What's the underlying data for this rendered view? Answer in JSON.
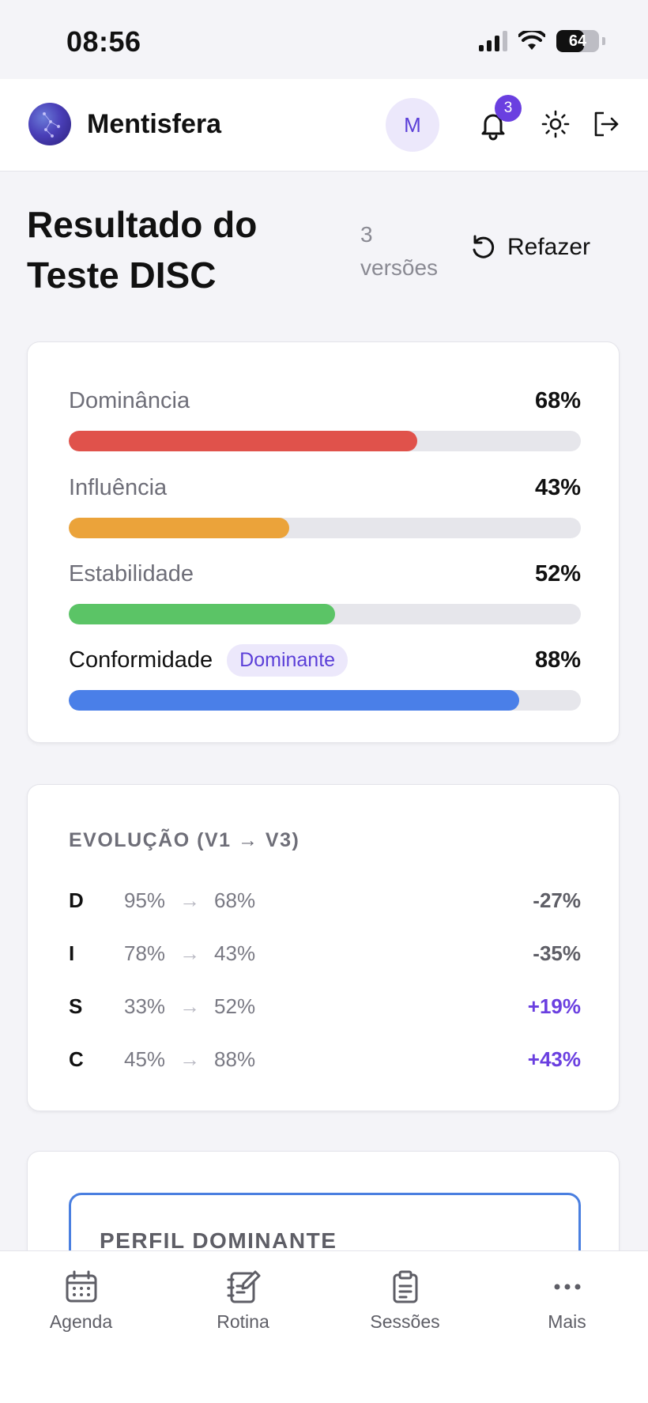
{
  "status_bar": {
    "time": "08:56",
    "battery": "64"
  },
  "header": {
    "title": "Mentisfera",
    "avatar_initial": "M",
    "notification_count": "3"
  },
  "page": {
    "title": "Resultado do Teste DISC",
    "versions": "3 versões",
    "redo_label": "Refazer"
  },
  "scores": [
    {
      "label": "Dominância",
      "value_text": "68%",
      "value": 68,
      "color": "#e0524b",
      "dominant": false
    },
    {
      "label": "Influência",
      "value_text": "43%",
      "value": 43,
      "color": "#eba33a",
      "dominant": false
    },
    {
      "label": "Estabilidade",
      "value_text": "52%",
      "value": 52,
      "color": "#5bc466",
      "dominant": false
    },
    {
      "label": "Conformidade",
      "value_text": "88%",
      "value": 88,
      "color": "#4a7fe8",
      "dominant": true,
      "badge": "Dominante"
    }
  ],
  "evolution": {
    "title": "EVOLUÇÃO (V1 → V3)",
    "rows": [
      {
        "letter": "D",
        "from": "95%",
        "to": "68%",
        "delta": "-27%",
        "trend": "neg"
      },
      {
        "letter": "I",
        "from": "78%",
        "to": "43%",
        "delta": "-35%",
        "trend": "neg"
      },
      {
        "letter": "S",
        "from": "33%",
        "to": "52%",
        "delta": "+19%",
        "trend": "pos"
      },
      {
        "letter": "C",
        "from": "45%",
        "to": "88%",
        "delta": "+43%",
        "trend": "pos"
      }
    ]
  },
  "profile": {
    "label": "PERFIL DOMINANTE"
  },
  "nav": [
    {
      "label": "Agenda",
      "icon": "calendar-icon"
    },
    {
      "label": "Rotina",
      "icon": "notebook-edit-icon"
    },
    {
      "label": "Sessões",
      "icon": "clipboard-icon"
    },
    {
      "label": "Mais",
      "icon": "more-dots-icon"
    }
  ],
  "colors": {
    "accent": "#6a3fe0",
    "profile_border": "#4a7fe0"
  }
}
